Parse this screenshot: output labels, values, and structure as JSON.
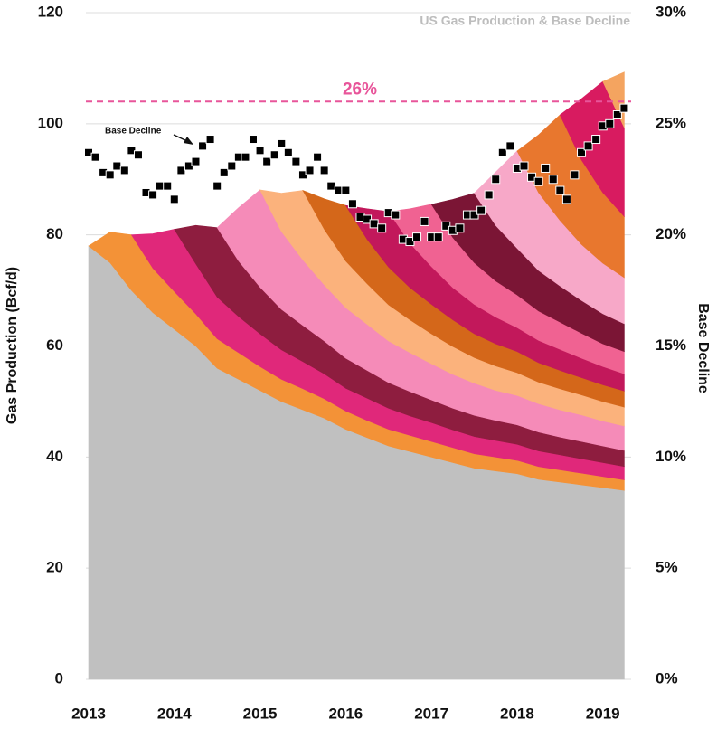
{
  "chart_data": {
    "type": "area",
    "title": "US Gas Production & Base Decline",
    "y_label": "Gas Production (Bcf/d)",
    "y2_label": "Base Decline",
    "x": [
      2013,
      2013.25,
      2013.5,
      2013.75,
      2014,
      2014.25,
      2014.5,
      2014.75,
      2015,
      2015.25,
      2015.5,
      2015.75,
      2016,
      2016.25,
      2016.5,
      2016.75,
      2017,
      2017.25,
      2017.5,
      2017.75,
      2018,
      2018.25,
      2018.5,
      2018.75,
      2019,
      2019.25
    ],
    "xlim": [
      2013,
      2019.33
    ],
    "xticks": [
      2013,
      2014,
      2015,
      2016,
      2017,
      2018,
      2019
    ],
    "ylim": [
      0,
      120
    ],
    "yticks": [
      0,
      20,
      40,
      60,
      80,
      100,
      120
    ],
    "y2lim": [
      0,
      30
    ],
    "y2ticks": [
      {
        "value": 0,
        "label": "0%"
      },
      {
        "value": 5,
        "label": "5%"
      },
      {
        "value": 10,
        "label": "10%"
      },
      {
        "value": 15,
        "label": "15%"
      },
      {
        "value": 20,
        "label": "20%"
      },
      {
        "value": 25,
        "label": "25%"
      },
      {
        "value": 30,
        "label": "30%"
      }
    ],
    "grid": true,
    "stacked": true,
    "series": [
      {
        "type": "area",
        "color": "#c0c0c0",
        "values": [
          78,
          75,
          70,
          66,
          63,
          60,
          56,
          54,
          52,
          50,
          48.5,
          47,
          45,
          43.5,
          42,
          41,
          40,
          39,
          38,
          37.5,
          37,
          36,
          35.5,
          35,
          34.5,
          34
        ]
      },
      {
        "type": "area",
        "color": "#f39237",
        "values": [
          0,
          5.5,
          10,
          8,
          6.8,
          5.8,
          5.3,
          4.8,
          4.3,
          4,
          3.8,
          3.5,
          3.3,
          3.1,
          3,
          2.9,
          2.8,
          2.7,
          2.6,
          2.5,
          2.4,
          2.3,
          2.2,
          2.1,
          2,
          1.9
        ]
      },
      {
        "type": "area",
        "color": "#e0287a",
        "values": [
          null,
          null,
          0,
          6.2,
          11.2,
          9,
          7.5,
          6.5,
          5.9,
          5.3,
          4.9,
          4.5,
          4.1,
          4,
          3.8,
          3.5,
          3.4,
          3.2,
          3.1,
          3,
          2.9,
          2.8,
          2.7,
          2.6,
          2.5,
          2.4
        ]
      },
      {
        "type": "area",
        "color": "#8e1d3f",
        "values": [
          null,
          null,
          null,
          null,
          0,
          6.9,
          12.5,
          10,
          8.4,
          7.3,
          6.5,
          5.9,
          5.4,
          5,
          4.6,
          4.4,
          4.1,
          3.9,
          3.8,
          3.6,
          3.5,
          3.4,
          3.2,
          3.1,
          3,
          2.9
        ]
      },
      {
        "type": "area",
        "color": "#f58bb8",
        "values": [
          null,
          null,
          null,
          null,
          null,
          null,
          0,
          9.6,
          17.5,
          14,
          11.8,
          10.1,
          9.1,
          8.3,
          7.5,
          7,
          6.5,
          6.1,
          5.8,
          5.4,
          5.3,
          5.1,
          4.9,
          4.8,
          4.5,
          4.4
        ]
      },
      {
        "type": "area",
        "color": "#fbb27c",
        "values": [
          null,
          null,
          null,
          null,
          null,
          null,
          null,
          null,
          0,
          6.9,
          12.5,
          10,
          8.4,
          7.3,
          6.5,
          5.9,
          5.4,
          5,
          4.6,
          4.4,
          4.1,
          3.9,
          3.8,
          3.6,
          3.5,
          3.4
        ]
      },
      {
        "type": "area",
        "color": "#d4671a",
        "values": [
          null,
          null,
          null,
          null,
          null,
          null,
          null,
          null,
          null,
          null,
          0,
          5.5,
          10,
          8,
          6.8,
          5.8,
          5.3,
          4.8,
          4.3,
          4,
          3.8,
          3.5,
          3.3,
          3.1,
          3,
          2.9
        ]
      },
      {
        "type": "area",
        "color": "#c2185b",
        "values": [
          null,
          null,
          null,
          null,
          null,
          null,
          null,
          null,
          null,
          null,
          null,
          null,
          0,
          5.5,
          10,
          8,
          6.8,
          5.8,
          5.3,
          4.8,
          4.3,
          4,
          3.8,
          3.5,
          3.3,
          3.1
        ]
      },
      {
        "type": "area",
        "color": "#f06292",
        "values": [
          null,
          null,
          null,
          null,
          null,
          null,
          null,
          null,
          null,
          null,
          null,
          null,
          null,
          null,
          0,
          6.2,
          11.2,
          9,
          7.5,
          6.5,
          5.9,
          5.3,
          4.9,
          4.5,
          4.1,
          4
        ]
      },
      {
        "type": "area",
        "color": "#7b1535",
        "values": [
          null,
          null,
          null,
          null,
          null,
          null,
          null,
          null,
          null,
          null,
          null,
          null,
          null,
          null,
          null,
          null,
          0,
          6.9,
          12.5,
          10,
          8.4,
          7.3,
          6.5,
          5.9,
          5.4,
          5
        ]
      },
      {
        "type": "area",
        "color": "#f7a8c8",
        "values": [
          null,
          null,
          null,
          null,
          null,
          null,
          null,
          null,
          null,
          null,
          null,
          null,
          null,
          null,
          null,
          null,
          null,
          null,
          0,
          9.6,
          17.5,
          14,
          11.8,
          10.1,
          9.1,
          8.3
        ]
      },
      {
        "type": "area",
        "color": "#e8772e",
        "values": [
          null,
          null,
          null,
          null,
          null,
          null,
          null,
          null,
          null,
          null,
          null,
          null,
          null,
          null,
          null,
          null,
          null,
          null,
          null,
          null,
          0,
          10.4,
          19,
          15.2,
          12.7,
          11
        ]
      },
      {
        "type": "area",
        "color": "#d81b60",
        "values": [
          null,
          null,
          null,
          null,
          null,
          null,
          null,
          null,
          null,
          null,
          null,
          null,
          null,
          null,
          null,
          null,
          null,
          null,
          null,
          null,
          null,
          null,
          0,
          11,
          20,
          16
        ]
      },
      {
        "type": "area",
        "color": "#f4a460",
        "values": [
          null,
          null,
          null,
          null,
          null,
          null,
          null,
          null,
          null,
          null,
          null,
          null,
          null,
          null,
          null,
          null,
          null,
          null,
          null,
          null,
          null,
          null,
          null,
          null,
          0,
          10
        ]
      },
      {
        "type": "scatter",
        "axis": "y2",
        "color": "#000000",
        "x": [
          2013,
          2013.08,
          2013.17,
          2013.25,
          2013.33,
          2013.42,
          2013.5,
          2013.58,
          2013.67,
          2013.75,
          2013.83,
          2013.92,
          2014,
          2014.08,
          2014.17,
          2014.25,
          2014.33,
          2014.42,
          2014.5,
          2014.58,
          2014.67,
          2014.75,
          2014.83,
          2014.92,
          2015,
          2015.08,
          2015.17,
          2015.25,
          2015.33,
          2015.42,
          2015.5,
          2015.58,
          2015.67,
          2015.75,
          2015.83,
          2015.92,
          2016,
          2016.08,
          2016.17,
          2016.25,
          2016.33,
          2016.42,
          2016.5,
          2016.58,
          2016.67,
          2016.75,
          2016.83,
          2016.92,
          2017,
          2017.08,
          2017.17,
          2017.25,
          2017.33,
          2017.42,
          2017.5,
          2017.58,
          2017.67,
          2017.75,
          2017.83,
          2017.92,
          2018,
          2018.08,
          2018.17,
          2018.25,
          2018.33,
          2018.42,
          2018.5,
          2018.58,
          2018.67,
          2018.75,
          2018.83,
          2018.92,
          2019,
          2019.08,
          2019.17,
          2019.25
        ],
        "values": [
          23.7,
          23.5,
          22.8,
          22.7,
          23.1,
          22.9,
          23.8,
          23.6,
          21.9,
          21.8,
          22.2,
          22.2,
          21.6,
          22.9,
          23.1,
          23.3,
          24,
          24.3,
          22.2,
          22.8,
          23.1,
          23.5,
          23.5,
          24.3,
          23.8,
          23.3,
          23.6,
          24.1,
          23.7,
          23.3,
          22.7,
          22.9,
          23.5,
          22.9,
          22.2,
          22,
          22,
          21.4,
          20.8,
          20.7,
          20.5,
          20.3,
          21,
          20.9,
          19.8,
          19.7,
          19.9,
          20.6,
          19.9,
          19.9,
          20.4,
          20.2,
          20.3,
          20.9,
          20.9,
          21.1,
          21.8,
          22.5,
          23.7,
          24,
          23,
          23.1,
          22.6,
          22.4,
          23,
          22.5,
          22,
          21.6,
          22.7,
          23.7,
          24,
          24.3,
          24.9,
          25,
          25.4,
          25.7
        ]
      }
    ],
    "reference_lines": [
      {
        "axis": "y2",
        "value": 26,
        "label": "26%",
        "color": "#e8559a",
        "dashed": true
      }
    ],
    "annotations": [
      {
        "text": "Base Decline"
      }
    ]
  }
}
